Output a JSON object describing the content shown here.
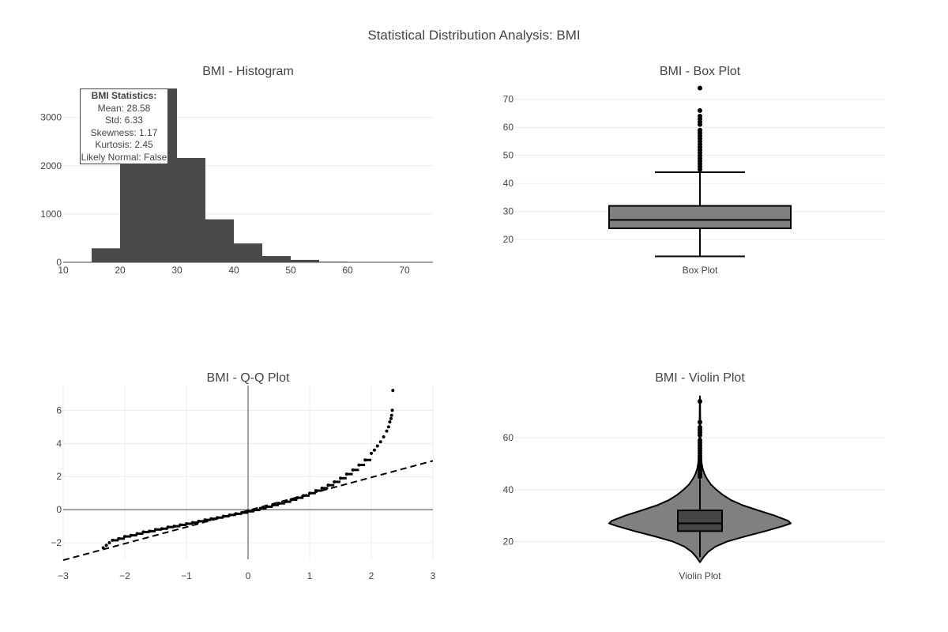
{
  "figure": {
    "title": "Statistical Distribution Analysis: BMI"
  },
  "colors": {
    "bar": "#4a4a4a",
    "box": "#808080",
    "median": "#444444",
    "marker": "#000000",
    "grid": "#ececec",
    "text": "#444444"
  },
  "stats_box": {
    "header": "BMI Statistics:",
    "lines": [
      "Mean: 28.58",
      "Std: 6.33",
      "Skewness: 1.17",
      "Kurtosis: 2.45",
      "Likely Normal: False"
    ]
  },
  "chart_data": [
    {
      "id": "histogram",
      "type": "bar",
      "title": "BMI - Histogram",
      "bins": [
        [
          15,
          20
        ],
        [
          20,
          25
        ],
        [
          25,
          30
        ],
        [
          30,
          35
        ],
        [
          35,
          40
        ],
        [
          40,
          45
        ],
        [
          45,
          50
        ],
        [
          50,
          55
        ],
        [
          55,
          60
        ],
        [
          60,
          65
        ],
        [
          65,
          70
        ],
        [
          70,
          75
        ]
      ],
      "values": [
        290,
        3180,
        3600,
        2160,
        890,
        390,
        130,
        50,
        12,
        3,
        1,
        1
      ],
      "xlim": [
        10,
        75
      ],
      "ylim": [
        0,
        3600
      ],
      "xticks": [
        10,
        20,
        30,
        40,
        50,
        60,
        70
      ],
      "yticks": [
        0,
        1000,
        2000,
        3000
      ],
      "xlabel": "",
      "ylabel": "",
      "grid": true
    },
    {
      "id": "boxplot",
      "type": "box",
      "title": "BMI - Box Plot",
      "category": "Box Plot",
      "whisker_low": 14,
      "q1": 24,
      "median": 27,
      "q3": 32,
      "whisker_high": 44,
      "outliers": [
        45,
        46,
        47,
        48,
        49,
        50,
        51,
        52,
        53,
        54,
        55,
        56,
        57,
        58,
        59,
        61,
        62,
        63,
        64,
        66,
        74
      ],
      "ylim": [
        13,
        75
      ],
      "yticks": [
        20,
        30,
        40,
        50,
        60,
        70
      ],
      "grid": true
    },
    {
      "id": "qqplot",
      "type": "scatter",
      "title": "BMI - Q-Q Plot",
      "xlim": [
        -3,
        3
      ],
      "ylim": [
        -3,
        7.5
      ],
      "xticks": [
        -3,
        -2,
        -1,
        0,
        1,
        2,
        3
      ],
      "yticks": [
        -2,
        0,
        2,
        4,
        6
      ],
      "reference_line": [
        [
          -3,
          -3.05
        ],
        [
          3,
          2.95
        ]
      ],
      "points_x": [
        -2.35,
        -2.3,
        -2.25,
        -2.2,
        -2.1,
        -2.0,
        -1.9,
        -1.8,
        -1.7,
        -1.6,
        -1.5,
        -1.4,
        -1.3,
        -1.2,
        -1.1,
        -1.0,
        -0.9,
        -0.8,
        -0.7,
        -0.6,
        -0.5,
        -0.4,
        -0.3,
        -0.2,
        -0.1,
        0.0,
        0.1,
        0.2,
        0.3,
        0.4,
        0.5,
        0.6,
        0.7,
        0.8,
        0.9,
        1.0,
        1.1,
        1.2,
        1.3,
        1.4,
        1.5,
        1.6,
        1.7,
        1.8,
        1.9,
        2.0,
        2.05,
        2.1,
        2.15,
        2.2,
        2.25,
        2.28,
        2.3,
        2.32,
        2.33,
        2.34,
        2.35
      ],
      "points_y": [
        -2.3,
        -2.15,
        -2.0,
        -1.85,
        -1.75,
        -1.62,
        -1.55,
        -1.45,
        -1.35,
        -1.3,
        -1.2,
        -1.15,
        -1.05,
        -1.0,
        -0.92,
        -0.85,
        -0.78,
        -0.7,
        -0.62,
        -0.55,
        -0.48,
        -0.4,
        -0.32,
        -0.25,
        -0.18,
        -0.1,
        -0.02,
        0.08,
        0.18,
        0.28,
        0.38,
        0.48,
        0.6,
        0.72,
        0.85,
        1.0,
        1.15,
        1.3,
        1.48,
        1.68,
        1.9,
        2.15,
        2.4,
        2.7,
        3.0,
        3.4,
        3.6,
        3.85,
        4.1,
        4.4,
        4.75,
        5.0,
        5.3,
        5.5,
        5.7,
        6.0,
        7.2
      ],
      "grid": true
    },
    {
      "id": "violin",
      "type": "violin",
      "title": "BMI - Violin Plot",
      "category": "Violin Plot",
      "kde_y": [
        12,
        14,
        16,
        18,
        20,
        22,
        24,
        26,
        27,
        28,
        30,
        32,
        34,
        36,
        38,
        40,
        42,
        44,
        46,
        48,
        50,
        52,
        55,
        60,
        65,
        70,
        75,
        76
      ],
      "kde_halfwidth": [
        0.0,
        0.04,
        0.09,
        0.17,
        0.3,
        0.5,
        0.72,
        0.92,
        1.0,
        0.97,
        0.82,
        0.64,
        0.47,
        0.34,
        0.25,
        0.18,
        0.12,
        0.08,
        0.05,
        0.03,
        0.02,
        0.014,
        0.01,
        0.006,
        0.004,
        0.003,
        0.002,
        0.0
      ],
      "whisker_low": 14,
      "q1": 24,
      "median": 27,
      "q3": 32,
      "whisker_high": 44,
      "outliers": [
        45,
        46,
        47,
        48,
        49,
        50,
        51,
        52,
        53,
        54,
        55,
        56,
        57,
        58,
        59,
        61,
        62,
        63,
        64,
        66,
        74
      ],
      "ylim": [
        11,
        78
      ],
      "yticks": [
        20,
        40,
        60
      ],
      "grid": true
    }
  ]
}
